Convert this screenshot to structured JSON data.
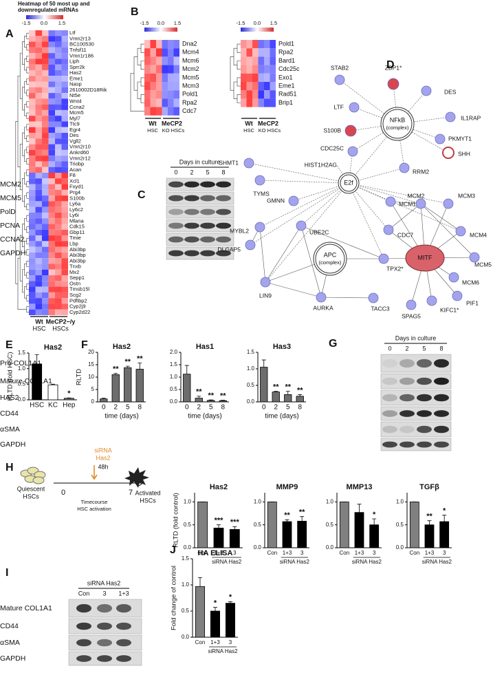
{
  "panels": {
    "A": {
      "label": "A",
      "title_lines": [
        "Heatmap of 50 most up and",
        "downregulated mRNAs"
      ],
      "scale": [
        "-1.5",
        "0.0",
        "1.5"
      ],
      "genes": [
        "Ltf",
        "Vmn2r13",
        "BC100530",
        "Tnfsf11",
        "Vmn1r186",
        "Liph",
        "Sprr2k",
        "Has2",
        "Eme1",
        "Nasp",
        "2610002D18Rik",
        "Nt5e",
        "Wnt4",
        "Ccna2",
        "Mcm5",
        "Myl7",
        "Ttc9",
        "Egr4",
        "Des",
        "Vgll2",
        "Vmn2r10",
        "Ankrd60",
        "Vmn2r12",
        "Triobp",
        "Acan",
        "F8",
        "Xcl1",
        "Fxyd1",
        "Prg4",
        "S100b",
        "Ly6a",
        "Ly6c2",
        "Ly6i",
        "Mlana",
        "Cdk15",
        "Gbp11",
        "Tmie",
        "Lbp",
        "Abi3bp",
        "Abi3bp",
        "Abi3bp",
        "Tnxb",
        "Mx2",
        "Sepp1",
        "Ostn",
        "Tmsb15l",
        "Scg2",
        "Pdfibp2",
        "Cyp2j9",
        "Cyp2d22"
      ],
      "groups": [
        "Wt",
        "MeCP2−/y"
      ],
      "sublabels": [
        "HSC",
        "HSCs"
      ]
    },
    "B": {
      "label": "B",
      "scale": [
        "-1.5",
        "0.0",
        "1.5"
      ],
      "left_genes": [
        "Dna2",
        "Mcm4",
        "Mcm6",
        "Mcm2",
        "Mcm5",
        "Mcm3",
        "Pold1",
        "Rpa2",
        "Cdc7"
      ],
      "right_genes": [
        "Pold1",
        "Rpa2",
        "Bard1",
        "Cdc25c",
        "Exo1",
        "Eme1",
        "Rad51",
        "Brip1"
      ],
      "groups": [
        "Wt",
        "MeCP2"
      ],
      "sublabels": [
        "HSC",
        "KO HSCs"
      ]
    },
    "C": {
      "label": "C",
      "header": "Days in culture",
      "lanes": [
        "0",
        "2",
        "5",
        "8"
      ],
      "rows": [
        "MCM2",
        "MCM5",
        "PolD",
        "PCNA",
        "CCNA2",
        "GAPDH"
      ]
    },
    "D": {
      "label": "D",
      "nodes": [
        {
          "label": "STAB2"
        },
        {
          "label": "ZBP1*"
        },
        {
          "label": "DES"
        },
        {
          "label": "LTF"
        },
        {
          "label": "S100B"
        },
        {
          "label": "NFkB",
          "sub": "(complex)"
        },
        {
          "label": "IL1RAP"
        },
        {
          "label": "PKMYT1"
        },
        {
          "label": "SHH"
        },
        {
          "label": "CDC25C"
        },
        {
          "label": "HIST1H2AG"
        },
        {
          "label": "SHMT1"
        },
        {
          "label": "TYMS"
        },
        {
          "label": "RRM2"
        },
        {
          "label": "E2f"
        },
        {
          "label": "GMNN"
        },
        {
          "label": "MCM10"
        },
        {
          "label": "MCM2"
        },
        {
          "label": "MCM3"
        },
        {
          "label": "MYBL2"
        },
        {
          "label": "UBE2C"
        },
        {
          "label": "DLGAP5"
        },
        {
          "label": "CDC7"
        },
        {
          "label": "MCM4"
        },
        {
          "label": "APC",
          "sub": "(complex)"
        },
        {
          "label": "TPX2*"
        },
        {
          "label": "MITF"
        },
        {
          "label": "MCM5"
        },
        {
          "label": "MCM6"
        },
        {
          "label": "LIN9"
        },
        {
          "label": "AURKA"
        },
        {
          "label": "TACC3"
        },
        {
          "label": "SPAG5"
        },
        {
          "label": "KIFC1*"
        },
        {
          "label": "PIF1"
        }
      ]
    },
    "E": {
      "label": "E"
    },
    "F": {
      "label": "F"
    },
    "G": {
      "label": "G",
      "header": "Days in culture",
      "lanes": [
        "0",
        "2",
        "5",
        "8"
      ],
      "rows": [
        "Pro-COL1A1",
        "Mature COL1A1",
        "HAS2",
        "CD44",
        "αSMA",
        "GAPDH"
      ]
    },
    "H": {
      "label": "H",
      "siRNA": [
        "siRNA",
        "Has2"
      ],
      "duration": "48h",
      "start": "0",
      "end": "7",
      "quiescent": [
        "Quiescent",
        "HSCs"
      ],
      "timecourse": [
        "Timecourse",
        "HSC activation"
      ],
      "activated": [
        "Activated",
        "HSCs"
      ]
    },
    "I": {
      "label": "I",
      "header": "siRNA Has2",
      "lanes": [
        "Con",
        "3",
        "1+3"
      ],
      "rows": [
        "Mature COL1A1",
        "CD44",
        "αSMA",
        "GAPDH"
      ]
    },
    "J": {
      "label": "J"
    }
  },
  "chart_data": [
    {
      "type": "bar",
      "title": "Has2",
      "ylabel": "RLTD (fold HSC)",
      "categories": [
        "HSC",
        "KC",
        "Hep"
      ],
      "values": [
        1.15,
        0.48,
        0.05
      ],
      "errors": [
        0.3,
        0.02,
        0.01
      ],
      "annotations": [
        null,
        null,
        "*"
      ],
      "colors": [
        "#000000",
        "#ffffff",
        "#808080"
      ],
      "ylim": [
        0,
        1.5
      ],
      "yticks": [
        {
          "value": 0,
          "label": "0.0"
        },
        0.5,
        {
          "value": 1,
          "label": "1.0"
        },
        1.5
      ]
    },
    {
      "type": "bar",
      "title": "Has2",
      "ylabel": "RLTD",
      "xlabel": "time (days)",
      "categories": [
        "0",
        "2",
        "5",
        "8"
      ],
      "values": [
        1.2,
        11,
        13.8,
        13.2
      ],
      "errors": [
        0.3,
        0.5,
        0.6,
        2.5
      ],
      "annotations": [
        null,
        "**",
        "**",
        "**"
      ],
      "colors": [
        "#6d6d6d",
        "#6d6d6d",
        "#6d6d6d",
        "#6d6d6d"
      ],
      "ylim": [
        0,
        20
      ],
      "yticks": [
        0,
        5,
        10,
        15,
        20
      ]
    },
    {
      "type": "bar",
      "title": "Has1",
      "xlabel": "time (days)",
      "categories": [
        "0",
        "2",
        "5",
        "8"
      ],
      "values": [
        1.12,
        0.15,
        0.06,
        0.05
      ],
      "errors": [
        0.35,
        0.08,
        0.02,
        0.02
      ],
      "annotations": [
        null,
        "**",
        "**",
        "**"
      ],
      "colors": [
        "#6d6d6d",
        "#6d6d6d",
        "#6d6d6d",
        "#6d6d6d"
      ],
      "ylim": [
        0,
        2
      ],
      "yticks": [
        {
          "value": 0,
          "label": "0.0"
        },
        0.5,
        {
          "value": 1,
          "label": "1.0"
        },
        1.5,
        {
          "value": 2,
          "label": "2.0"
        }
      ]
    },
    {
      "type": "bar",
      "title": "Has3",
      "xlabel": "time (days)",
      "categories": [
        "0",
        "2",
        "5",
        "8"
      ],
      "values": [
        1.05,
        0.3,
        0.22,
        0.17
      ],
      "errors": [
        0.22,
        0.02,
        0.1,
        0.05
      ],
      "annotations": [
        null,
        "**",
        "**",
        "**"
      ],
      "colors": [
        "#6d6d6d",
        "#6d6d6d",
        "#6d6d6d",
        "#6d6d6d"
      ],
      "ylim": [
        0,
        1.5
      ],
      "yticks": [
        {
          "value": 0,
          "label": "0.0"
        },
        0.5,
        {
          "value": 1,
          "label": "1.0"
        },
        1.5
      ]
    },
    {
      "type": "bar",
      "title": "Has2",
      "ylabel": "RLTD (fold control)",
      "group_label": "siRNA Has2",
      "categories": [
        "Con",
        "1+3",
        "3"
      ],
      "values": [
        1,
        0.43,
        0.4
      ],
      "errors": [
        0,
        0.07,
        0.06
      ],
      "annotations": [
        null,
        "***",
        "***"
      ],
      "colors": [
        "#808080",
        "#000000",
        "#000000"
      ],
      "ylim": [
        0,
        1.2
      ],
      "yticks": [
        {
          "value": 0,
          "label": "0.0"
        },
        0.5,
        {
          "value": 1,
          "label": "1.0"
        }
      ]
    },
    {
      "type": "bar",
      "title": "MMP9",
      "group_label": "siRNA Has2",
      "categories": [
        "Con",
        "1+3",
        "3"
      ],
      "values": [
        1,
        0.57,
        0.58
      ],
      "errors": [
        0,
        0.04,
        0.1
      ],
      "annotations": [
        null,
        "**",
        "**"
      ],
      "colors": [
        "#808080",
        "#000000",
        "#000000"
      ],
      "ylim": [
        0,
        1.2
      ],
      "yticks": [
        {
          "value": 0,
          "label": "0.0"
        },
        0.5,
        {
          "value": 1,
          "label": "1.0"
        }
      ]
    },
    {
      "type": "bar",
      "title": "MMP13",
      "group_label": "siRNA Has2",
      "categories": [
        "Con",
        "1+3",
        "3"
      ],
      "values": [
        1,
        0.77,
        0.5
      ],
      "errors": [
        0,
        0.18,
        0.13
      ],
      "annotations": [
        null,
        null,
        "*"
      ],
      "colors": [
        "#808080",
        "#000000",
        "#000000"
      ],
      "ylim": [
        0,
        1.2
      ],
      "yticks": [
        {
          "value": 0,
          "label": "0.0"
        },
        0.5,
        {
          "value": 1,
          "label": "1.0"
        }
      ]
    },
    {
      "type": "bar",
      "title": "TGFβ",
      "group_label": "siRNA Has2",
      "categories": [
        "Con",
        "1+3",
        "3"
      ],
      "values": [
        1,
        0.5,
        0.57
      ],
      "errors": [
        0,
        0.09,
        0.14
      ],
      "annotations": [
        null,
        "**",
        "*"
      ],
      "colors": [
        "#808080",
        "#000000",
        "#000000"
      ],
      "ylim": [
        0,
        1.2
      ],
      "yticks": [
        {
          "value": 0,
          "label": "0.0"
        },
        0.5,
        {
          "value": 1,
          "label": "1.0"
        }
      ]
    },
    {
      "type": "bar",
      "title": "HA ELISA",
      "ylabel": "Fold change of control",
      "group_label": "siRNA Has2",
      "categories": [
        "Con",
        "1+3",
        "3"
      ],
      "values": [
        0.97,
        0.5,
        0.65
      ],
      "errors": [
        0.17,
        0.07,
        0.03
      ],
      "annotations": [
        null,
        "*",
        "*"
      ],
      "colors": [
        "#808080",
        "#000000",
        "#000000"
      ],
      "ylim": [
        0,
        1.5
      ],
      "yticks": [
        {
          "value": 0,
          "label": "0.0"
        },
        0.5,
        {
          "value": 1,
          "label": "1.0"
        },
        1.5
      ]
    }
  ]
}
